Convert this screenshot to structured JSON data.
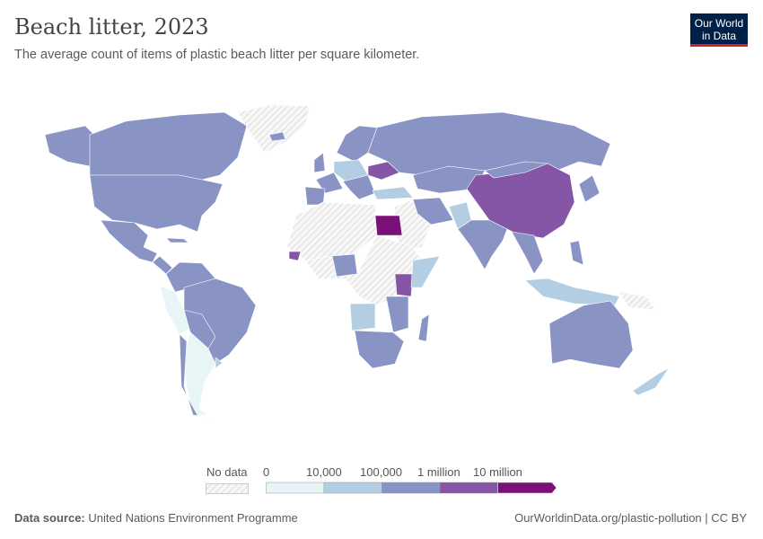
{
  "header": {
    "title": "Beach litter, 2023",
    "subtitle": "The average count of items of plastic beach litter per square kilometer.",
    "logo": "Our World in Data"
  },
  "legend": {
    "no_data_label": "No data",
    "bins": [
      {
        "label": "0",
        "color": "#e8f5f7"
      },
      {
        "label": "10,000",
        "color": "#b3cde2"
      },
      {
        "label": "100,000",
        "color": "#8a94c4"
      },
      {
        "label": "1 million",
        "color": "#8656a6"
      },
      {
        "label": "10 million",
        "color": "#7b1078"
      }
    ]
  },
  "footer": {
    "source_label": "Data source:",
    "source": "United Nations Environment Programme",
    "link": "OurWorldinData.org/plastic-pollution | CC BY"
  }
}
